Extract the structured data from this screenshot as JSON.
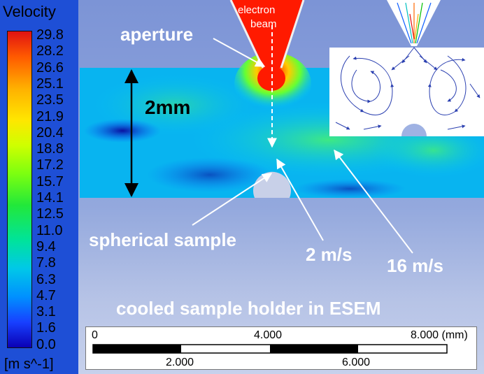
{
  "colorbar": {
    "title": "Velocity",
    "unit": "[m s^-1]",
    "ticks": [
      "29.8",
      "28.2",
      "26.6",
      "25.1",
      "23.5",
      "21.9",
      "20.4",
      "18.8",
      "17.2",
      "15.7",
      "14.1",
      "12.5",
      "11.0",
      "9.4",
      "7.8",
      "6.3",
      "4.7",
      "3.1",
      "1.6",
      "0.0"
    ]
  },
  "labels": {
    "aperture": "aperture",
    "beam_line1": "electron",
    "beam_line2": "beam",
    "height": "2mm",
    "spherical_sample": "spherical sample",
    "velocity_low": "2 m/s",
    "velocity_high": "16 m/s",
    "caption": "cooled sample holder in ESEM"
  },
  "scale_bar": {
    "top_labels": [
      "0",
      "4.000",
      "8.000 (mm)"
    ],
    "bottom_labels": [
      "2.000",
      "6.000"
    ]
  },
  "colors": {
    "beam": "#ff1a00",
    "channel_base": "#00b0ff",
    "background": "#8ba0da"
  }
}
